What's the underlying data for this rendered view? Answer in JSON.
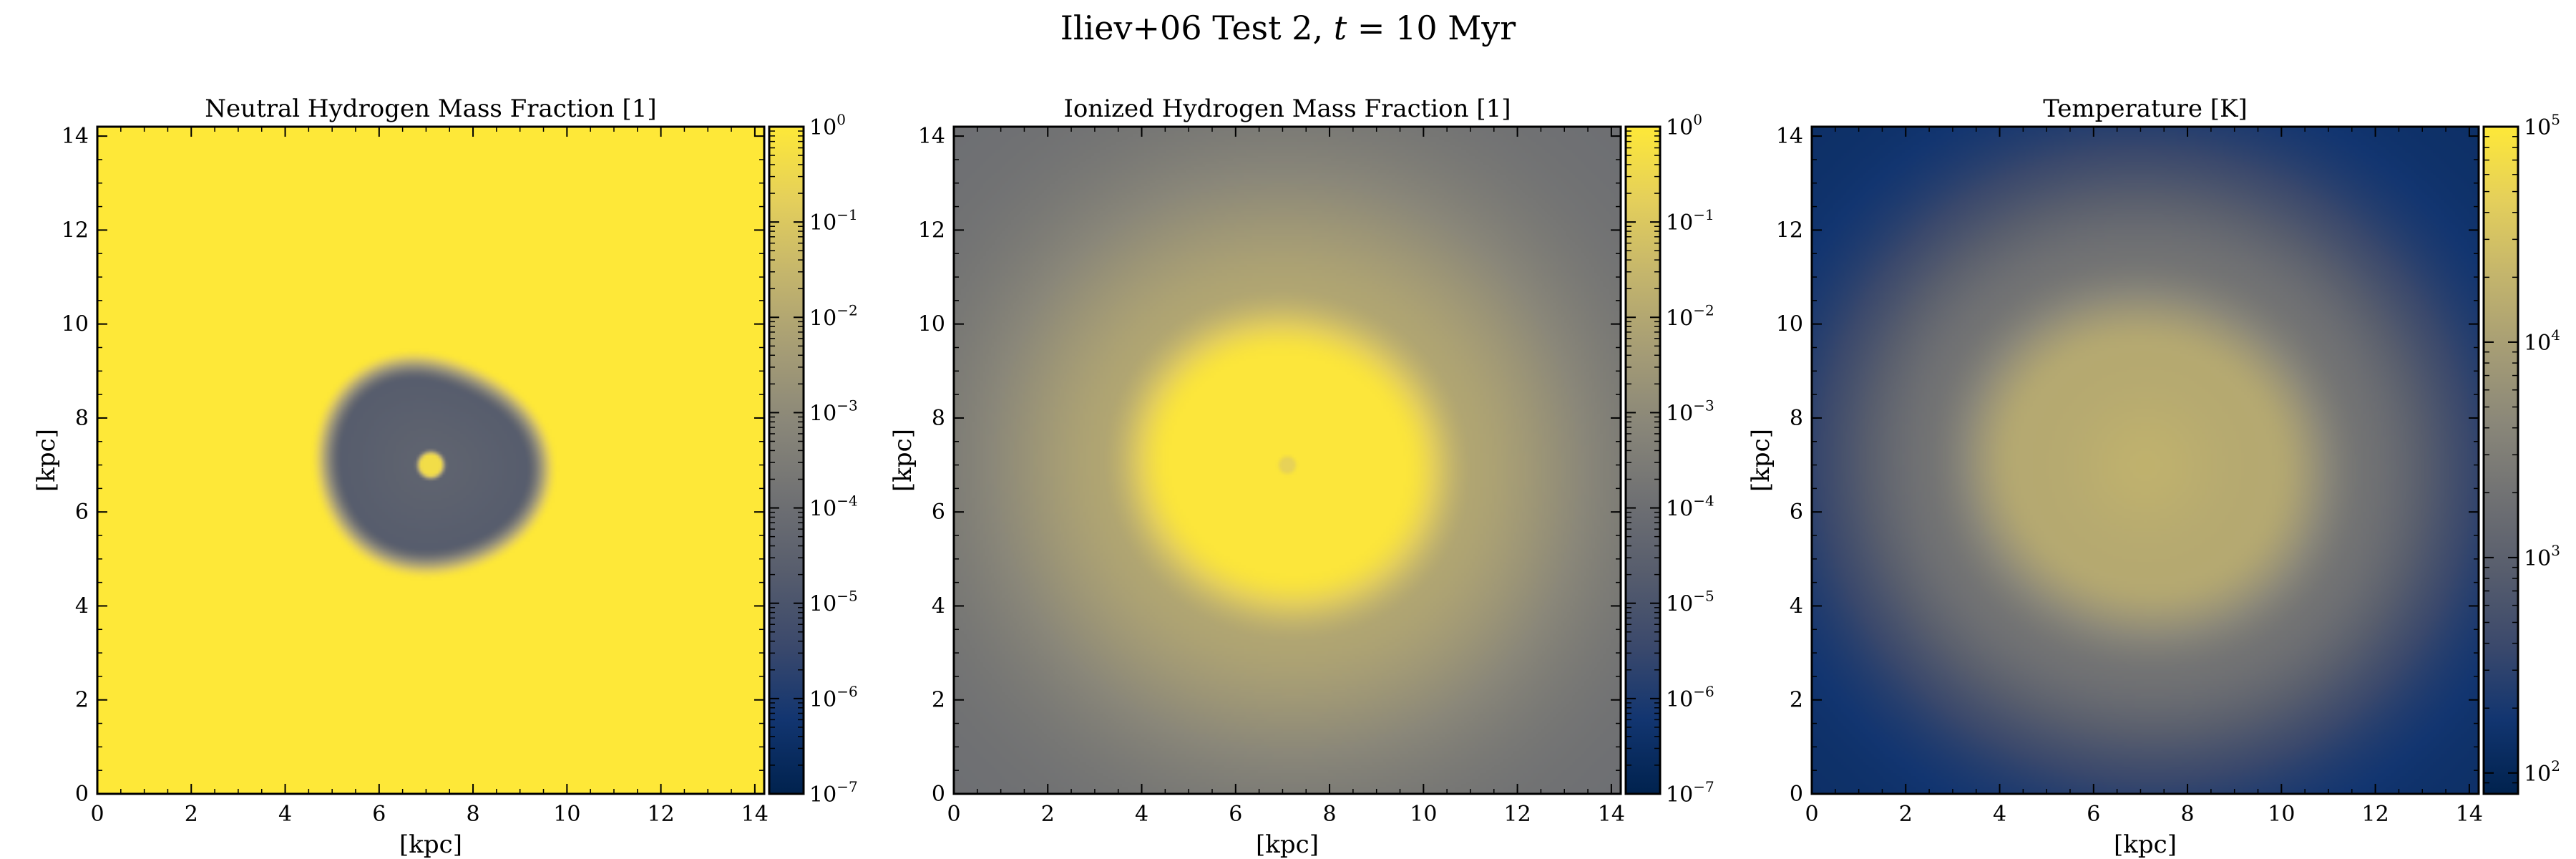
{
  "figure": {
    "suptitle_prefix": "Iliev+06 Test 2, ",
    "suptitle_var": "t",
    "suptitle_suffix": " = 10 Myr"
  },
  "colors": {
    "colormap": "cividis",
    "cividis_stops": [
      "#00224e",
      "#123570",
      "#3b496c",
      "#575d6d",
      "#707173",
      "#8a8779",
      "#a69d75",
      "#c4b56c",
      "#e4cf5b",
      "#fee838"
    ]
  },
  "chart_data": [
    {
      "type": "heatmap",
      "title": "Neutral Hydrogen Mass Fraction [1]",
      "xlabel": "[kpc]",
      "ylabel": "[kpc]",
      "xlim": [
        0,
        14.2
      ],
      "ylim": [
        0,
        14.2
      ],
      "xticks": [
        "0",
        "2",
        "4",
        "6",
        "8",
        "10",
        "12",
        "14"
      ],
      "yticks": [
        "0",
        "2",
        "4",
        "6",
        "8",
        "10",
        "12",
        "14"
      ],
      "colorbar": {
        "scale": "log",
        "range": [
          1e-07,
          1
        ],
        "ticks": [
          {
            "value": 1,
            "base": "10",
            "exp": "0"
          },
          {
            "value": 0.1,
            "base": "10",
            "exp": "−1"
          },
          {
            "value": 0.01,
            "base": "10",
            "exp": "−2"
          },
          {
            "value": 0.001,
            "base": "10",
            "exp": "−3"
          },
          {
            "value": 0.0001,
            "base": "10",
            "exp": "−4"
          },
          {
            "value": 1e-05,
            "base": "10",
            "exp": "−5"
          },
          {
            "value": 1e-06,
            "base": "10",
            "exp": "−6"
          },
          {
            "value": 1e-07,
            "base": "10",
            "exp": "−7"
          }
        ]
      },
      "field": {
        "background_level": 1.0,
        "center_kpc": [
          7.1,
          7.0
        ],
        "ionized_front_radius_kpc": 2.3,
        "core_radius_kpc": 0.3,
        "inner_level": 0.33,
        "core_level": 0.95
      }
    },
    {
      "type": "heatmap",
      "title": "Ionized Hydrogen Mass Fraction [1]",
      "xlabel": "[kpc]",
      "ylabel": "[kpc]",
      "xlim": [
        0,
        14.2
      ],
      "ylim": [
        0,
        14.2
      ],
      "xticks": [
        "0",
        "2",
        "4",
        "6",
        "8",
        "10",
        "12",
        "14"
      ],
      "yticks": [
        "0",
        "2",
        "4",
        "6",
        "8",
        "10",
        "12",
        "14"
      ],
      "colorbar": {
        "scale": "log",
        "range": [
          1e-07,
          1
        ],
        "ticks": [
          {
            "value": 1,
            "base": "10",
            "exp": "0"
          },
          {
            "value": 0.1,
            "base": "10",
            "exp": "−1"
          },
          {
            "value": 0.01,
            "base": "10",
            "exp": "−2"
          },
          {
            "value": 0.001,
            "base": "10",
            "exp": "−3"
          },
          {
            "value": 0.0001,
            "base": "10",
            "exp": "−4"
          },
          {
            "value": 1e-05,
            "base": "10",
            "exp": "−5"
          },
          {
            "value": 1e-06,
            "base": "10",
            "exp": "−6"
          },
          {
            "value": 1e-07,
            "base": "10",
            "exp": "−7"
          }
        ]
      },
      "field": {
        "background_level": 0.43,
        "center_kpc": [
          7.1,
          7.0
        ],
        "ionized_front_radius_kpc": 3.4,
        "inner_level": 0.99,
        "core_level": 0.9
      }
    },
    {
      "type": "heatmap",
      "title": "Temperature [K]",
      "xlabel": "[kpc]",
      "ylabel": "[kpc]",
      "xlim": [
        0,
        14.2
      ],
      "ylim": [
        0,
        14.2
      ],
      "xticks": [
        "0",
        "2",
        "4",
        "6",
        "8",
        "10",
        "12",
        "14"
      ],
      "yticks": [
        "0",
        "2",
        "4",
        "6",
        "8",
        "10",
        "12",
        "14"
      ],
      "colorbar": {
        "scale": "log",
        "range": [
          80,
          100000
        ],
        "ticks": [
          {
            "value": 100000,
            "base": "10",
            "exp": "5"
          },
          {
            "value": 10000,
            "base": "10",
            "exp": "4"
          },
          {
            "value": 1000,
            "base": "10",
            "exp": "3"
          },
          {
            "value": 100,
            "base": "10",
            "exp": "2"
          }
        ]
      },
      "field": {
        "background_level": 0.08,
        "center_kpc": [
          7.1,
          7.0
        ],
        "ionized_front_radius_kpc": 4.2,
        "inner_level": 0.72,
        "core_level": 0.76
      }
    }
  ]
}
